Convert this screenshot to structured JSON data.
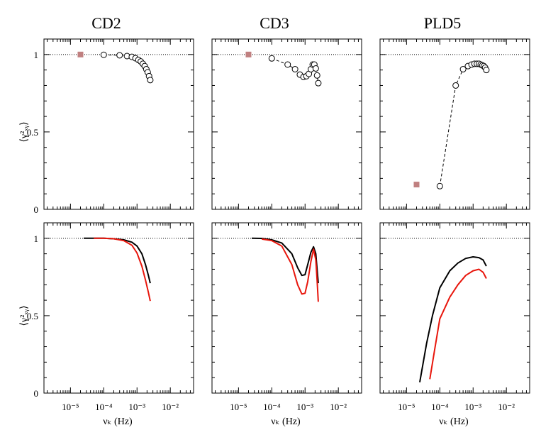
{
  "titles": [
    "CD2",
    "CD3",
    "PLD5"
  ],
  "y_label": "⟨γ²ₓᵧ⟩",
  "x_label": "νₖ (Hz)",
  "y_ticks": [
    "0",
    "0.5",
    "1"
  ],
  "x_ticks": [
    "10⁻⁵",
    "10⁻⁴",
    "10⁻³",
    "10⁻²"
  ],
  "colors": {
    "black": "#000000",
    "red": "#e8160c",
    "square": "#c08080",
    "ref": "#000000"
  },
  "chart_data": [
    {
      "type": "scatter",
      "panel": "CD2 top",
      "xscale": "log",
      "xlim": [
        1.6e-06,
        0.05
      ],
      "ylim": [
        0,
        1.1
      ],
      "reference_line": 1,
      "square": {
        "x": 2e-05,
        "y": 1.0
      },
      "circles": {
        "x": [
          0.0001,
          0.0003,
          0.0005,
          0.0007,
          0.0009,
          0.0011,
          0.0013,
          0.0015,
          0.0017,
          0.0019,
          0.0021,
          0.0023,
          0.0025
        ],
        "y": [
          0.998,
          0.995,
          0.99,
          0.985,
          0.976,
          0.965,
          0.955,
          0.94,
          0.925,
          0.905,
          0.885,
          0.86,
          0.835
        ]
      }
    },
    {
      "type": "scatter",
      "panel": "CD3 top",
      "xscale": "log",
      "xlim": [
        1.6e-06,
        0.05
      ],
      "ylim": [
        0,
        1.1
      ],
      "reference_line": 1,
      "square": {
        "x": 2e-05,
        "y": 1.0
      },
      "circles": {
        "x": [
          0.0001,
          0.0003,
          0.0005,
          0.0007,
          0.0009,
          0.0011,
          0.0013,
          0.0015,
          0.0017,
          0.0019,
          0.0021,
          0.0023,
          0.0025
        ],
        "y": [
          0.975,
          0.935,
          0.905,
          0.87,
          0.855,
          0.86,
          0.875,
          0.905,
          0.935,
          0.935,
          0.91,
          0.865,
          0.815
        ]
      }
    },
    {
      "type": "scatter",
      "panel": "PLD5 top",
      "xscale": "log",
      "xlim": [
        1.6e-06,
        0.05
      ],
      "ylim": [
        0,
        1.1
      ],
      "reference_line": 1,
      "square": {
        "x": 2e-05,
        "y": 0.16
      },
      "circles": {
        "x": [
          0.0001,
          0.0003,
          0.0005,
          0.0007,
          0.0009,
          0.0011,
          0.0013,
          0.0015,
          0.0017,
          0.0019,
          0.0021,
          0.0023,
          0.0025
        ],
        "y": [
          0.15,
          0.8,
          0.905,
          0.925,
          0.935,
          0.94,
          0.94,
          0.94,
          0.935,
          0.93,
          0.925,
          0.915,
          0.9
        ]
      }
    },
    {
      "type": "line",
      "panel": "CD2 bottom",
      "xscale": "log",
      "xlim": [
        1.6e-06,
        0.05
      ],
      "ylim": [
        0,
        1.1
      ],
      "reference_line": 1,
      "series": [
        {
          "color": "black",
          "x": [
            2.5e-05,
            5e-05,
            0.0001,
            0.0002,
            0.0004,
            0.0007,
            0.001,
            0.0014,
            0.0018,
            0.0022,
            0.0025
          ],
          "y": [
            1.0,
            1.0,
            1.0,
            0.997,
            0.99,
            0.975,
            0.95,
            0.9,
            0.83,
            0.76,
            0.71
          ]
        },
        {
          "color": "red",
          "x": [
            5e-05,
            0.0001,
            0.0002,
            0.0004,
            0.0007,
            0.001,
            0.0014,
            0.0018,
            0.0022,
            0.0025
          ],
          "y": [
            1.0,
            1.0,
            0.997,
            0.985,
            0.955,
            0.905,
            0.82,
            0.73,
            0.65,
            0.595
          ]
        }
      ]
    },
    {
      "type": "line",
      "panel": "CD3 bottom",
      "xscale": "log",
      "xlim": [
        1.6e-06,
        0.05
      ],
      "ylim": [
        0,
        1.1
      ],
      "reference_line": 1,
      "series": [
        {
          "color": "black",
          "x": [
            2.5e-05,
            5e-05,
            0.0001,
            0.0002,
            0.0004,
            0.0006,
            0.0008,
            0.001,
            0.0012,
            0.0015,
            0.0018,
            0.0021,
            0.0023,
            0.0025
          ],
          "y": [
            1.0,
            0.999,
            0.99,
            0.97,
            0.9,
            0.81,
            0.76,
            0.765,
            0.83,
            0.91,
            0.945,
            0.9,
            0.8,
            0.71
          ]
        },
        {
          "color": "red",
          "x": [
            5e-05,
            0.0001,
            0.0002,
            0.0004,
            0.0006,
            0.0008,
            0.001,
            0.0012,
            0.0015,
            0.0018,
            0.0021,
            0.0023,
            0.0025
          ],
          "y": [
            0.995,
            0.985,
            0.95,
            0.83,
            0.7,
            0.64,
            0.645,
            0.72,
            0.85,
            0.93,
            0.86,
            0.73,
            0.59
          ]
        }
      ]
    },
    {
      "type": "line",
      "panel": "PLD5 bottom",
      "xscale": "log",
      "xlim": [
        1.6e-06,
        0.05
      ],
      "ylim": [
        0,
        1.1
      ],
      "reference_line": 1,
      "series": [
        {
          "color": "black",
          "x": [
            2.5e-05,
            4e-05,
            6e-05,
            0.0001,
            0.0002,
            0.00035,
            0.0006,
            0.001,
            0.0015,
            0.002,
            0.0025
          ],
          "y": [
            0.07,
            0.32,
            0.5,
            0.68,
            0.79,
            0.84,
            0.87,
            0.88,
            0.875,
            0.86,
            0.82
          ]
        },
        {
          "color": "red",
          "x": [
            5e-05,
            7e-05,
            0.0001,
            0.0002,
            0.00035,
            0.0006,
            0.001,
            0.0015,
            0.002,
            0.0025
          ],
          "y": [
            0.09,
            0.28,
            0.48,
            0.62,
            0.7,
            0.76,
            0.79,
            0.8,
            0.78,
            0.74
          ]
        }
      ]
    }
  ]
}
